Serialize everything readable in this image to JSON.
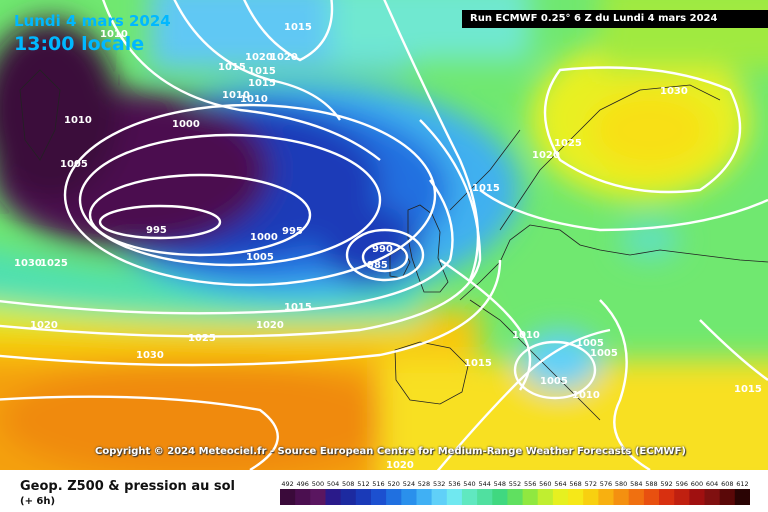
{
  "header": {
    "date": "Lundi 4 mars 2024",
    "time": "13:00 locale",
    "run": "Run ECMWF 0.25° 6 Z du Lundi 4 mars 2024"
  },
  "footer": {
    "title": "Geop. Z500 & pression au sol",
    "subtitle": "(+ 6h)",
    "copyright": "Copyright © 2024 Meteociel.fr - Source European Centre for Medium-Range Weather Forecasts (ECMWF)"
  },
  "scale": {
    "labels": [
      "492",
      "496",
      "500",
      "504",
      "508",
      "512",
      "516",
      "520",
      "524",
      "528",
      "532",
      "536",
      "540",
      "544",
      "548",
      "552",
      "556",
      "560",
      "564",
      "568",
      "572",
      "576",
      "580",
      "584",
      "588",
      "592",
      "596",
      "600",
      "604",
      "608",
      "612"
    ],
    "colors": [
      "#3a0a3a",
      "#4b0f50",
      "#5a1660",
      "#2a1a8a",
      "#1c2aa0",
      "#1a3ab8",
      "#1c50d0",
      "#2070e0",
      "#2a90ec",
      "#40b0f4",
      "#60d0f8",
      "#70e8f0",
      "#60e8c0",
      "#50e0a0",
      "#40d880",
      "#60e060",
      "#90e840",
      "#c0ee30",
      "#e6f020",
      "#f6e818",
      "#f8d010",
      "#f8b010",
      "#f49010",
      "#f07010",
      "#e85010",
      "#d83010",
      "#c02010",
      "#a01010",
      "#801010",
      "#5a0808",
      "#2a0404"
    ]
  },
  "isobar_labels": [
    "1010",
    "1015",
    "1020",
    "1020",
    "1015",
    "1015",
    "1015",
    "1010",
    "1010",
    "1010",
    "1000",
    "1005",
    "995",
    "1000",
    "995",
    "1005",
    "990",
    "985",
    "1030",
    "1025",
    "1015",
    "1020",
    "1020",
    "1025",
    "1030",
    "1015",
    "1025",
    "1030",
    "1020",
    "1010",
    "1005",
    "1005",
    "1005",
    "1010",
    "1015",
    "1015",
    "1020"
  ],
  "colors": {
    "accent": "#00b8ff",
    "isobar": "#ffffff"
  }
}
